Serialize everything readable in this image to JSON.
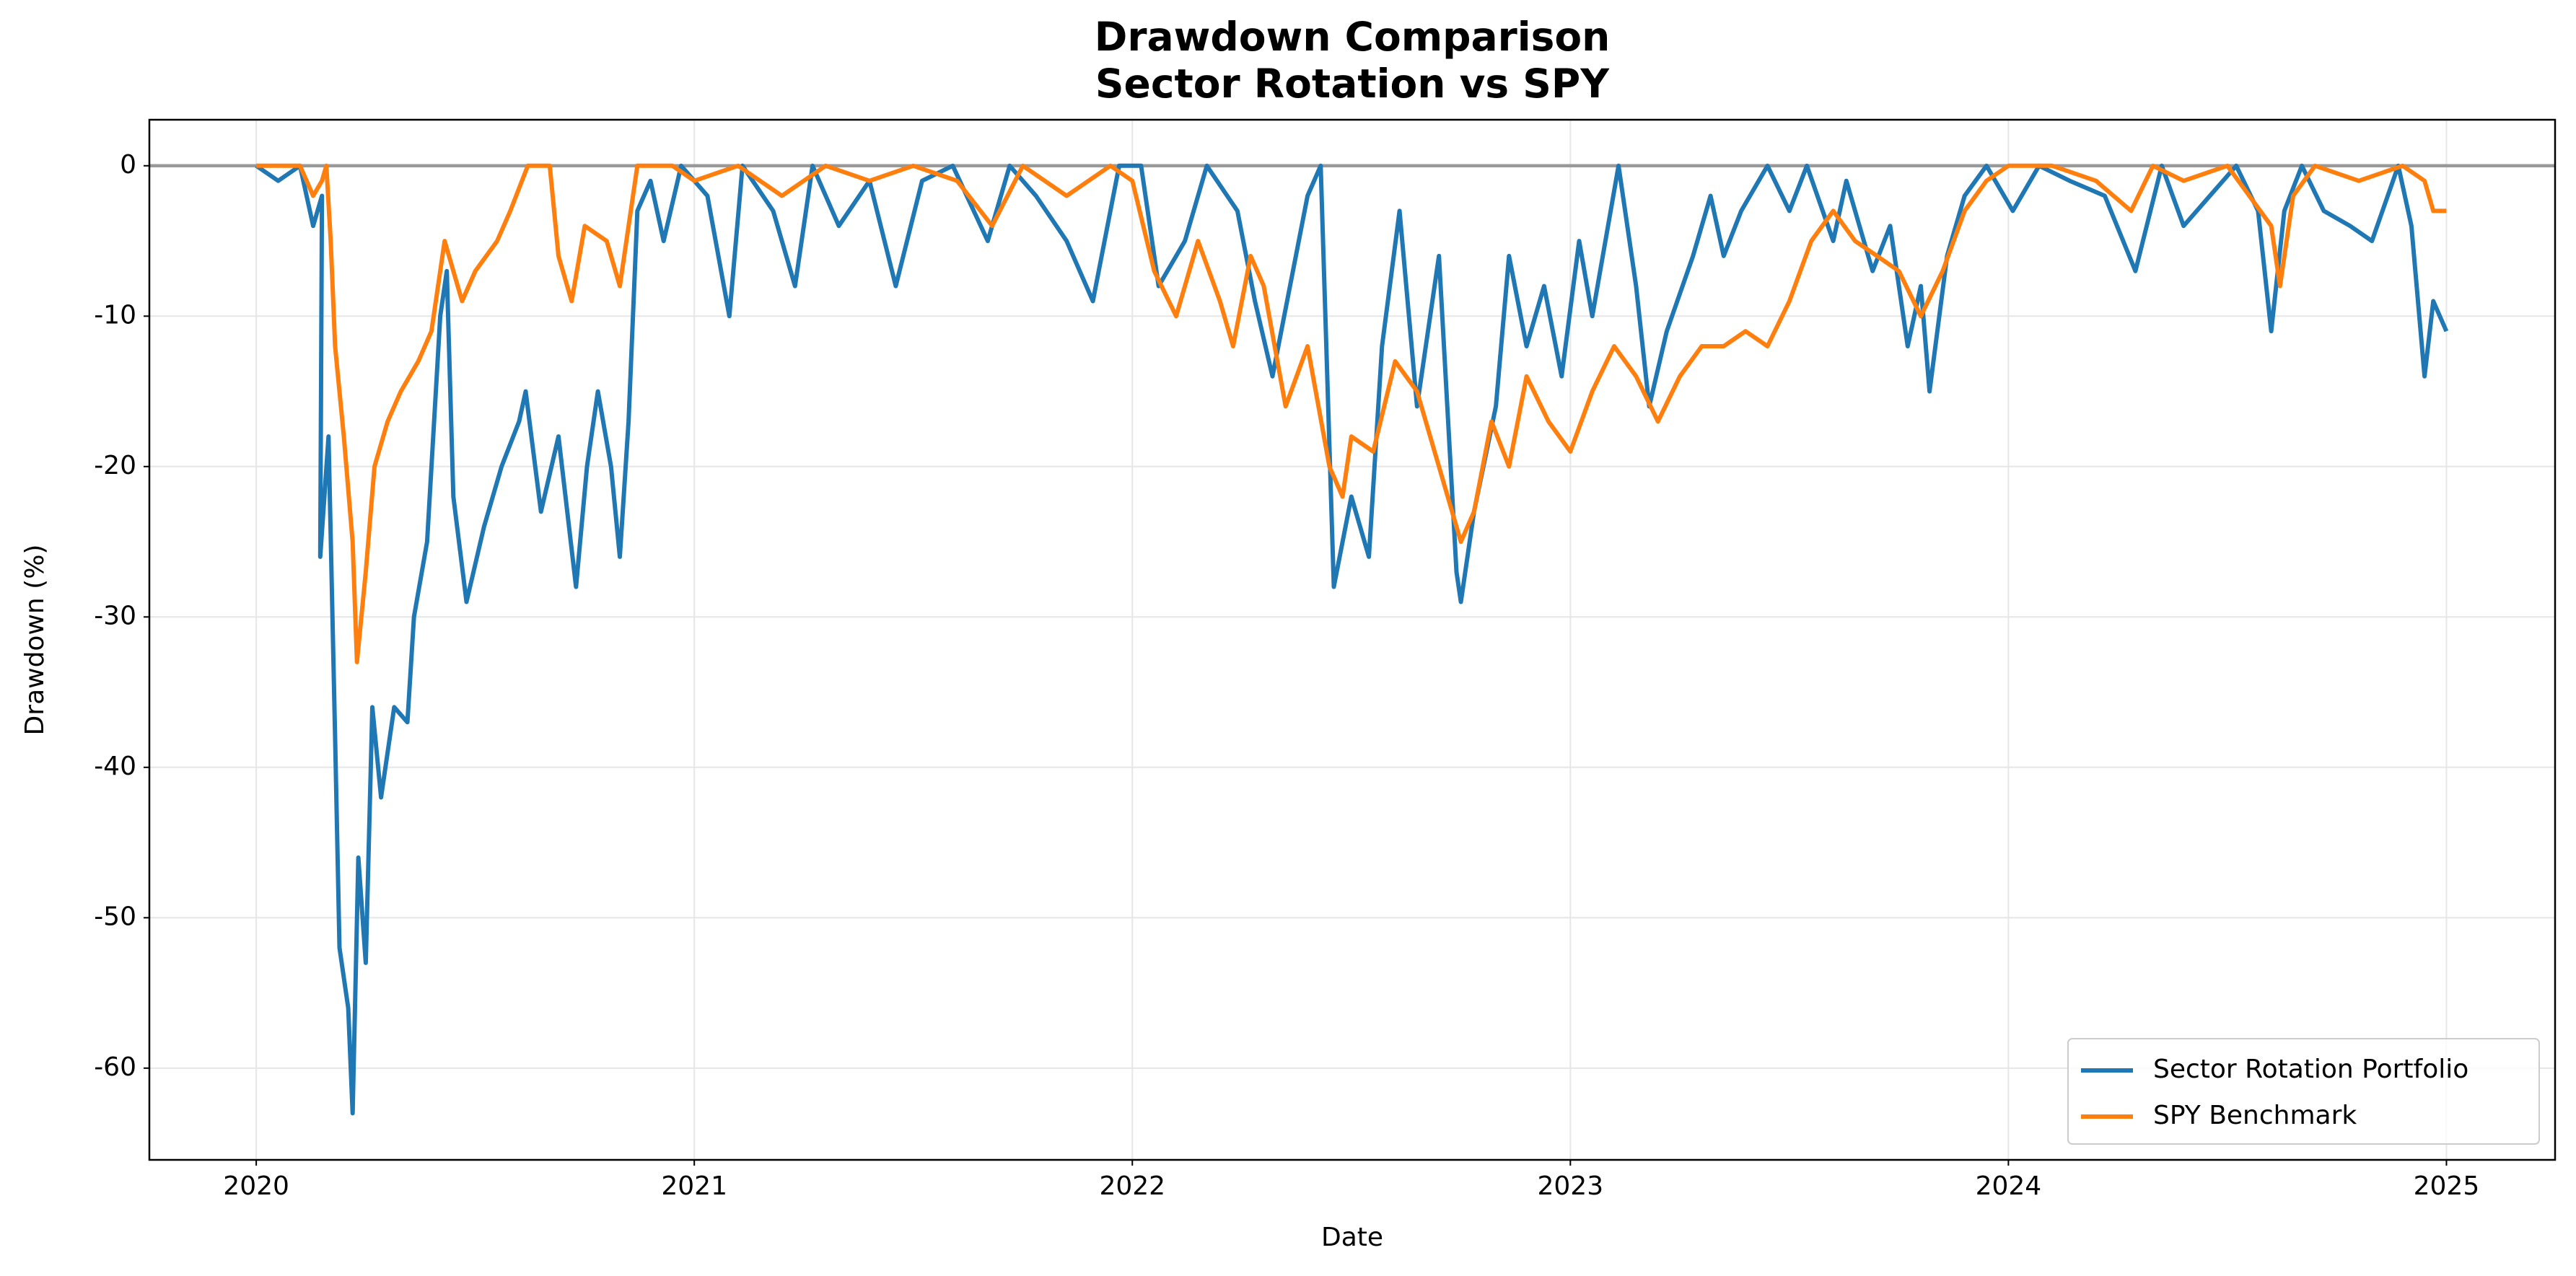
{
  "chart_data": {
    "type": "line",
    "title": [
      "Drawdown Comparison",
      "Sector Rotation vs SPY"
    ],
    "xlabel": "Date",
    "ylabel": "Drawdown (%)",
    "xlim": [
      2019.756,
      2025.248
    ],
    "xticks": [
      2020,
      2021,
      2022,
      2023,
      2024,
      2025
    ],
    "ylim": [
      -66.1,
      3.06
    ],
    "yticks": [
      -60,
      -50,
      -40,
      -30,
      -20,
      -10,
      0
    ],
    "grid": true,
    "legend": "lower right",
    "reference_line": {
      "value": 0,
      "color": "#999999"
    },
    "series": [
      {
        "name": "Sector Rotation Portfolio",
        "color": "#1f77b4",
        "x": [
          2020.0,
          2020.05,
          2020.1,
          2020.13,
          2020.15,
          2020.146,
          2020.165,
          2020.18,
          2020.19,
          2020.21,
          2020.22,
          2020.233,
          2020.25,
          2020.265,
          2020.285,
          2020.315,
          2020.345,
          2020.36,
          2020.39,
          2020.42,
          2020.435,
          2020.45,
          2020.48,
          2020.52,
          2020.56,
          2020.6,
          2020.615,
          2020.65,
          2020.69,
          2020.73,
          2020.755,
          2020.78,
          2020.81,
          2020.83,
          2020.85,
          2020.87,
          2020.9,
          2020.93,
          2020.97,
          2021.03,
          2021.08,
          2021.11,
          2021.18,
          2021.23,
          2021.27,
          2021.33,
          2021.4,
          2021.46,
          2021.52,
          2021.59,
          2021.67,
          2021.72,
          2021.78,
          2021.85,
          2021.91,
          2021.97,
          2022.02,
          2022.06,
          2022.12,
          2022.17,
          2022.24,
          2022.28,
          2022.32,
          2022.36,
          2022.4,
          2022.43,
          2022.46,
          2022.5,
          2022.54,
          2022.57,
          2022.61,
          2022.65,
          2022.7,
          2022.74,
          2022.75,
          2022.78,
          2022.83,
          2022.86,
          2022.9,
          2022.94,
          2022.98,
          2023.02,
          2023.05,
          2023.11,
          2023.15,
          2023.18,
          2023.22,
          2023.28,
          2023.32,
          2023.35,
          2023.39,
          2023.45,
          2023.5,
          2023.54,
          2023.6,
          2023.63,
          2023.69,
          2023.73,
          2023.77,
          2023.8,
          2023.82,
          2023.86,
          2023.9,
          2023.95,
          2024.01,
          2024.07,
          2024.14,
          2024.22,
          2024.29,
          2024.35,
          2024.4,
          2024.46,
          2024.52,
          2024.57,
          2024.6,
          2024.63,
          2024.67,
          2024.72,
          2024.78,
          2024.83,
          2024.89,
          2024.92,
          2024.95,
          2024.97,
          2025.0
        ],
        "values": [
          0,
          -1,
          0,
          -4,
          -2,
          -26,
          -18,
          -38,
          -52,
          -56,
          -63,
          -46,
          -53,
          -36,
          -42,
          -36,
          -37,
          -30,
          -25,
          -10,
          -7,
          -22,
          -29,
          -24,
          -20,
          -17,
          -15,
          -23,
          -18,
          -28,
          -20,
          -15,
          -20,
          -26,
          -17,
          -3,
          -1,
          -5,
          0,
          -2,
          -10,
          0,
          -3,
          -8,
          0,
          -4,
          -1,
          -8,
          -1,
          0,
          -5,
          0,
          -2,
          -5,
          -9,
          0,
          0,
          -8,
          -5,
          0,
          -3,
          -9,
          -14,
          -8,
          -2,
          0,
          -28,
          -22,
          -26,
          -12,
          -3,
          -16,
          -6,
          -27,
          -29,
          -23,
          -16,
          -6,
          -12,
          -8,
          -14,
          -5,
          -10,
          0,
          -8,
          -16,
          -11,
          -6,
          -2,
          -6,
          -3,
          0,
          -3,
          0,
          -5,
          -1,
          -7,
          -4,
          -12,
          -8,
          -15,
          -6,
          -2,
          0,
          -3,
          0,
          -1,
          -2,
          -7,
          0,
          -4,
          -2,
          0,
          -3,
          -11,
          -3,
          0,
          -3,
          -4,
          -5,
          0,
          -4,
          -14,
          -9,
          -11
        ]
      },
      {
        "name": "SPY Benchmark",
        "color": "#ff7f0e",
        "x": [
          2020.0,
          2020.1,
          2020.13,
          2020.15,
          2020.16,
          2020.17,
          2020.18,
          2020.2,
          2020.22,
          2020.23,
          2020.25,
          2020.27,
          2020.3,
          2020.33,
          2020.37,
          2020.4,
          2020.43,
          2020.47,
          2020.5,
          2020.55,
          2020.58,
          2020.62,
          2020.67,
          2020.69,
          2020.72,
          2020.75,
          2020.8,
          2020.83,
          2020.87,
          2020.95,
          2021.0,
          2021.1,
          2021.2,
          2021.3,
          2021.4,
          2021.5,
          2021.6,
          2021.68,
          2021.75,
          2021.85,
          2021.95,
          2022.0,
          2022.05,
          2022.1,
          2022.15,
          2022.2,
          2022.23,
          2022.27,
          2022.3,
          2022.35,
          2022.4,
          2022.45,
          2022.48,
          2022.5,
          2022.55,
          2022.6,
          2022.65,
          2022.7,
          2022.75,
          2022.78,
          2022.82,
          2022.86,
          2022.9,
          2022.95,
          2023.0,
          2023.05,
          2023.1,
          2023.15,
          2023.2,
          2023.25,
          2023.3,
          2023.35,
          2023.4,
          2023.45,
          2023.5,
          2023.55,
          2023.6,
          2023.65,
          2023.7,
          2023.75,
          2023.8,
          2023.85,
          2023.9,
          2023.95,
          2024.0,
          2024.1,
          2024.2,
          2024.28,
          2024.33,
          2024.4,
          2024.5,
          2024.6,
          2024.62,
          2024.65,
          2024.7,
          2024.8,
          2024.9,
          2024.95,
          2024.97,
          2025.0
        ],
        "values": [
          0,
          0,
          -2,
          -1,
          0,
          -5,
          -12,
          -18,
          -25,
          -33,
          -27,
          -20,
          -17,
          -15,
          -13,
          -11,
          -5,
          -9,
          -7,
          -5,
          -3,
          0,
          0,
          -6,
          -9,
          -4,
          -5,
          -8,
          0,
          0,
          -1,
          0,
          -2,
          0,
          -1,
          0,
          -1,
          -4,
          0,
          -2,
          0,
          -1,
          -7,
          -10,
          -5,
          -9,
          -12,
          -6,
          -8,
          -16,
          -12,
          -20,
          -22,
          -18,
          -19,
          -13,
          -15,
          -20,
          -25,
          -23,
          -17,
          -20,
          -14,
          -17,
          -19,
          -15,
          -12,
          -14,
          -17,
          -14,
          -12,
          -12,
          -11,
          -12,
          -9,
          -5,
          -3,
          -5,
          -6,
          -7,
          -10,
          -7,
          -3,
          -1,
          0,
          0,
          -1,
          -3,
          0,
          -1,
          0,
          -4,
          -8,
          -2,
          0,
          -1,
          0,
          -1,
          -3,
          -3
        ]
      }
    ]
  }
}
